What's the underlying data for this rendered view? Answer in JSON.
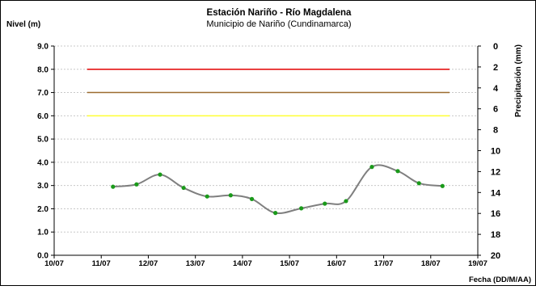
{
  "chart_data": {
    "type": "line",
    "title": "Estación Nariño  - Río Magdalena",
    "subtitle": "Municipio de Nariño (Cundinamarca)",
    "ylabel": "Nivel (m)",
    "y2label": "Precipitación (mm)",
    "xlabel": "Fecha (DD/M/AA)",
    "ylim": [
      0,
      9
    ],
    "y_ticks": [
      "0.0",
      "1.0",
      "2.0",
      "3.0",
      "4.0",
      "5.0",
      "6.0",
      "7.0",
      "8.0",
      "9.0"
    ],
    "y2lim": [
      0,
      20
    ],
    "y2_reversed": true,
    "y2_ticks": [
      "0",
      "2",
      "4",
      "6",
      "8",
      "10",
      "12",
      "14",
      "16",
      "18",
      "20"
    ],
    "x_ticks": [
      "10/07",
      "11/07",
      "12/07",
      "13/07",
      "14/07",
      "15/07",
      "16/07",
      "17/07",
      "18/07",
      "19/07"
    ],
    "grid": true,
    "thresholds": [
      {
        "y": 8.0,
        "color": "#e30000"
      },
      {
        "y": 7.0,
        "color": "#9c6b2f"
      },
      {
        "y": 6.0,
        "color": "#ffff33"
      }
    ],
    "series": [
      {
        "color": "#7f7f7f",
        "marker_color": "#1a9a1a",
        "x": [
          1.25,
          1.75,
          2.25,
          2.75,
          3.25,
          3.75,
          4.2,
          4.7,
          5.25,
          5.75,
          6.2,
          6.75,
          7.3,
          7.75,
          8.25
        ],
        "y": [
          2.95,
          3.05,
          3.47,
          2.9,
          2.53,
          2.58,
          2.42,
          1.82,
          2.02,
          2.22,
          2.33,
          3.8,
          3.62,
          3.1,
          2.98
        ]
      }
    ]
  }
}
